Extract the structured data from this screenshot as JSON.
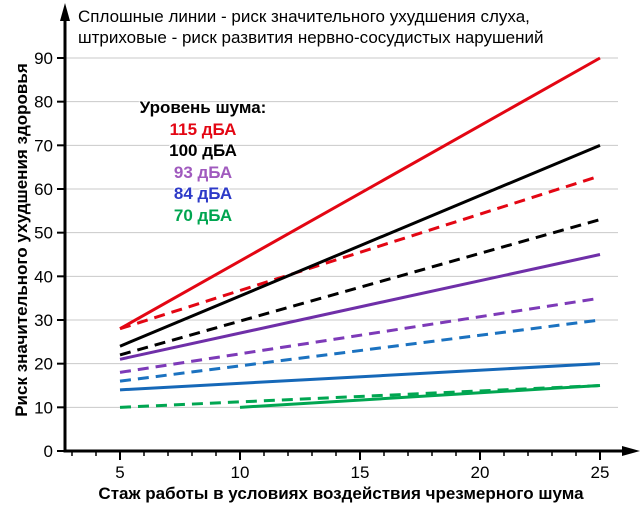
{
  "title": {
    "line1": "Сплошные линии - риск значительного ухудшения слуха,",
    "line2": "штриховые - риск развития нервно-сосудистых нарушений"
  },
  "axes": {
    "y": {
      "label": "Риск значительного ухудшения здоровья",
      "ticks": [
        0,
        10,
        20,
        30,
        40,
        50,
        60,
        70,
        80,
        90
      ]
    },
    "x": {
      "label": "Стаж работы в условиях воздействия чрезмерного шума",
      "ticks": [
        5,
        10,
        15,
        20,
        25
      ],
      "minor_ticks": [
        3,
        4,
        6,
        7,
        8,
        9,
        11,
        12,
        13,
        14,
        16,
        17,
        18,
        19,
        21,
        22,
        23,
        24
      ]
    }
  },
  "legend": {
    "header": "Уровень шума:",
    "items": [
      {
        "label": "115 дБА",
        "color": "#e30613"
      },
      {
        "label": "100 дБА",
        "color": "#000000"
      },
      {
        "label": "93 дБА",
        "color": "#a05abe"
      },
      {
        "label": "84 дБА",
        "color": "#2d3ac8"
      },
      {
        "label": "70 дБА",
        "color": "#00a550"
      }
    ]
  },
  "colors": {
    "grid": "#c9c9c9",
    "axis": "#000000",
    "background": "#ffffff"
  },
  "chart_data": {
    "type": "line",
    "title": "Сплошные линии - риск значительного ухудшения слуха, штриховые - риск развития нервно-сосудистых нарушений",
    "xlabel": "Стаж работы в условиях воздействия чрезмерного шума",
    "ylabel": "Риск значительного ухудшения здоровья",
    "xlim": [
      2,
      26
    ],
    "ylim": [
      0,
      95
    ],
    "grid": "horizontal",
    "legend_position": "upper-left-inside",
    "series": [
      {
        "name": "115 дБА — риск ухудшения слуха",
        "style": "solid",
        "color": "#e30613",
        "points": [
          [
            5,
            28
          ],
          [
            25,
            90
          ]
        ]
      },
      {
        "name": "115 дБА — риск нервно-сосудистых нарушений",
        "style": "dashed",
        "color": "#e30613",
        "points": [
          [
            5,
            28
          ],
          [
            25,
            63
          ]
        ]
      },
      {
        "name": "100 дБА — риск ухудшения слуха",
        "style": "solid",
        "color": "#000000",
        "points": [
          [
            5,
            24
          ],
          [
            25,
            70
          ]
        ]
      },
      {
        "name": "100 дБА — риск нервно-сосудистых нарушений",
        "style": "dashed",
        "color": "#000000",
        "points": [
          [
            5,
            22
          ],
          [
            25,
            53
          ]
        ]
      },
      {
        "name": "93 дБА — риск ухудшения слуха",
        "style": "solid",
        "color": "#6f2fa8",
        "points": [
          [
            5,
            21
          ],
          [
            25,
            45
          ]
        ]
      },
      {
        "name": "93 дБА — риск нервно-сосудистых нарушений",
        "style": "dashed",
        "color": "#7d3ab8",
        "points": [
          [
            5,
            18
          ],
          [
            25,
            35
          ]
        ]
      },
      {
        "name": "84 дБА — риск ухудшения слуха",
        "style": "solid",
        "color": "#1668b8",
        "points": [
          [
            5,
            14
          ],
          [
            25,
            20
          ]
        ]
      },
      {
        "name": "84 дБА — риск нервно-сосудистых нарушений",
        "style": "dashed",
        "color": "#1b72c0",
        "points": [
          [
            5,
            16
          ],
          [
            25,
            30
          ]
        ]
      },
      {
        "name": "70 дБА — риск ухудшения слуха",
        "style": "solid",
        "color": "#00a651",
        "points": [
          [
            10,
            10
          ],
          [
            25,
            15
          ]
        ]
      },
      {
        "name": "70 дБА — риск нервно-сосудистых нарушений",
        "style": "dashed",
        "color": "#00a651",
        "points": [
          [
            5,
            10
          ],
          [
            25,
            15
          ]
        ]
      }
    ]
  }
}
